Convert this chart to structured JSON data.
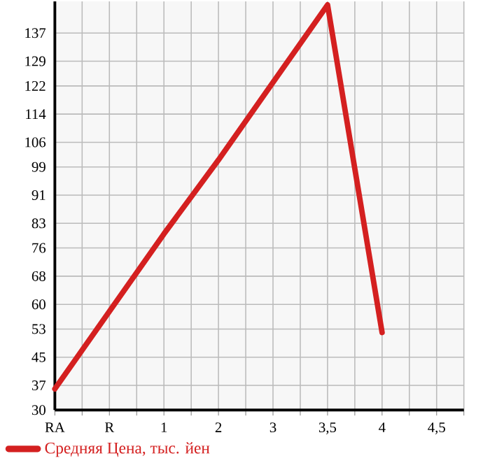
{
  "chart_data": {
    "type": "line",
    "categories": [
      "RA",
      "R",
      "1",
      "2",
      "3",
      "3,5",
      "4",
      "4,5"
    ],
    "series": [
      {
        "name": "Средняя Цена, тыс. йен",
        "color": "#d42020",
        "values": [
          36,
          58,
          80,
          101,
          123,
          145,
          52,
          null
        ]
      }
    ],
    "ylim": [
      30,
      146
    ],
    "yticks": [
      30,
      37,
      45,
      53,
      60,
      68,
      76,
      83,
      91,
      99,
      106,
      114,
      122,
      129,
      137
    ],
    "grid": true,
    "legend": "bottom",
    "marker": "none",
    "line_style": "solid"
  }
}
